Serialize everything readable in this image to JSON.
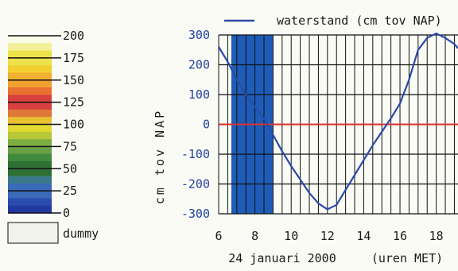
{
  "colors": {
    "line": "#2a4aa8",
    "zero_line": "#e03030",
    "shade": "#1e5cb8",
    "grid": "#111111",
    "tick_label": "#1a1a1a",
    "y_tick_label": "#1f3fa0",
    "background": "#fbfbf6"
  },
  "color_legend": {
    "levels": [
      {
        "label": "200",
        "value": 200
      },
      {
        "label": "175",
        "value": 175
      },
      {
        "label": "150",
        "value": 150
      },
      {
        "label": "125",
        "value": 125
      },
      {
        "label": "100",
        "value": 100
      },
      {
        "label": "75",
        "value": 75
      },
      {
        "label": "50",
        "value": 50
      },
      {
        "label": "25",
        "value": 25
      },
      {
        "label": "0",
        "value": 0
      }
    ],
    "bands": [
      {
        "from": 175,
        "to": 200,
        "colors": [
          "#fbfbe8",
          "#f3f09a",
          "#ece24a"
        ]
      },
      {
        "from": 150,
        "to": 175,
        "colors": [
          "#ece24a",
          "#f2d030",
          "#f0b030"
        ]
      },
      {
        "from": 125,
        "to": 150,
        "colors": [
          "#f0a030",
          "#e87030",
          "#d84040"
        ]
      },
      {
        "from": 100,
        "to": 125,
        "colors": [
          "#d84040",
          "#e07838",
          "#e8c030"
        ]
      },
      {
        "from": 75,
        "to": 100,
        "colors": [
          "#e2da30",
          "#b8c838",
          "#7cae44"
        ]
      },
      {
        "from": 50,
        "to": 75,
        "colors": [
          "#6aa048",
          "#3f8a3c",
          "#2e7034"
        ]
      },
      {
        "from": 25,
        "to": 50,
        "colors": [
          "#2e7034",
          "#3a7a88",
          "#3a6ab8"
        ]
      },
      {
        "from": 0,
        "to": 25,
        "colors": [
          "#3a6ab8",
          "#2a4cb0",
          "#2038a0"
        ]
      }
    ],
    "dummy_label": "dummy"
  },
  "chart_data": {
    "type": "line",
    "legend": "waterstand (cm tov NAP)",
    "legend_position": "top",
    "ylabel": "cm tov NAP",
    "xlabel": "24 januari 2000",
    "xlabel_unit": "(uren MET)",
    "xlim": [
      6,
      19.2
    ],
    "ylim": [
      -300,
      300
    ],
    "x_ticks": [
      6,
      8,
      10,
      12,
      14,
      16,
      18
    ],
    "y_ticks": [
      300,
      200,
      100,
      0,
      -100,
      -200,
      -300
    ],
    "grid": true,
    "zero_line": true,
    "x_grid_step": 0.5,
    "shaded_interval": [
      6.7,
      9.0
    ],
    "series": [
      {
        "name": "waterstand (cm tov NAP)",
        "x": [
          6,
          6.5,
          7,
          7.5,
          8,
          8.5,
          9,
          9.5,
          10,
          10.5,
          11,
          11.5,
          12,
          12.5,
          13,
          13.5,
          14,
          14.5,
          15,
          15.5,
          16,
          16.5,
          17,
          17.5,
          18,
          18.5,
          19,
          19.2
        ],
        "y": [
          260,
          210,
          150,
          100,
          60,
          20,
          -35,
          -90,
          -140,
          -185,
          -230,
          -265,
          -285,
          -270,
          -220,
          -170,
          -120,
          -70,
          -25,
          20,
          70,
          150,
          250,
          290,
          305,
          290,
          270,
          255
        ]
      }
    ]
  }
}
